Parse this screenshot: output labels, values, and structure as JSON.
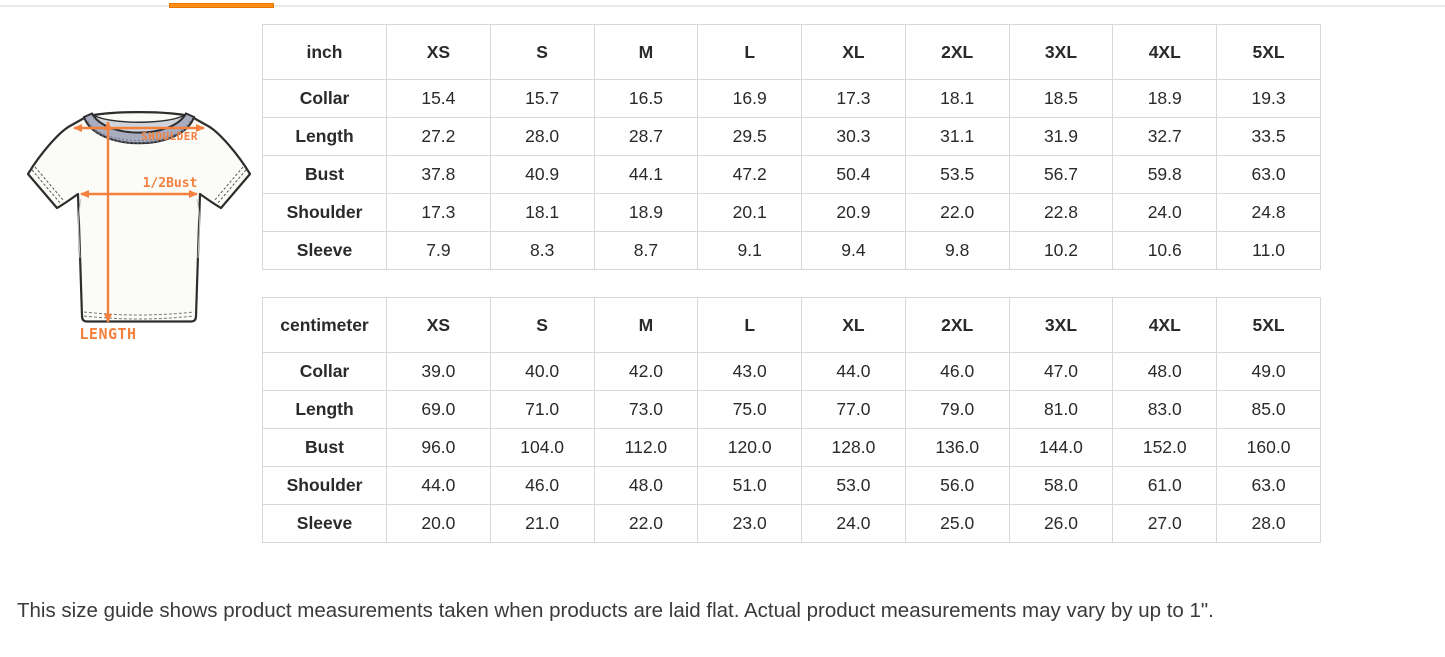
{
  "page": {
    "accent_color": "#ff8e14",
    "note": "This size guide shows product measurements taken when products are laid flat. Actual product measurements may vary by up to 1\"."
  },
  "diagram": {
    "arrow_color": "#F4803E",
    "collar_color": "#a8acbf",
    "labels": {
      "shoulder": "SHOULDER",
      "half_bust": "1/2Bust",
      "length": "LENGTH"
    }
  },
  "size_tables": [
    {
      "unit": "inch",
      "columns": [
        "inch",
        "XS",
        "S",
        "M",
        "L",
        "XL",
        "2XL",
        "3XL",
        "4XL",
        "5XL"
      ],
      "rows": [
        {
          "label": "Collar",
          "values": [
            "15.4",
            "15.7",
            "16.5",
            "16.9",
            "17.3",
            "18.1",
            "18.5",
            "18.9",
            "19.3"
          ]
        },
        {
          "label": "Length",
          "values": [
            "27.2",
            "28.0",
            "28.7",
            "29.5",
            "30.3",
            "31.1",
            "31.9",
            "32.7",
            "33.5"
          ]
        },
        {
          "label": "Bust",
          "values": [
            "37.8",
            "40.9",
            "44.1",
            "47.2",
            "50.4",
            "53.5",
            "56.7",
            "59.8",
            "63.0"
          ]
        },
        {
          "label": "Shoulder",
          "values": [
            "17.3",
            "18.1",
            "18.9",
            "20.1",
            "20.9",
            "22.0",
            "22.8",
            "24.0",
            "24.8"
          ]
        },
        {
          "label": "Sleeve",
          "values": [
            "7.9",
            "8.3",
            "8.7",
            "9.1",
            "9.4",
            "9.8",
            "10.2",
            "10.6",
            "11.0"
          ]
        }
      ]
    },
    {
      "unit": "centimeter",
      "columns": [
        "centimeter",
        "XS",
        "S",
        "M",
        "L",
        "XL",
        "2XL",
        "3XL",
        "4XL",
        "5XL"
      ],
      "rows": [
        {
          "label": "Collar",
          "values": [
            "39.0",
            "40.0",
            "42.0",
            "43.0",
            "44.0",
            "46.0",
            "47.0",
            "48.0",
            "49.0"
          ]
        },
        {
          "label": "Length",
          "values": [
            "69.0",
            "71.0",
            "73.0",
            "75.0",
            "77.0",
            "79.0",
            "81.0",
            "83.0",
            "85.0"
          ]
        },
        {
          "label": "Bust",
          "values": [
            "96.0",
            "104.0",
            "112.0",
            "120.0",
            "128.0",
            "136.0",
            "144.0",
            "152.0",
            "160.0"
          ]
        },
        {
          "label": "Shoulder",
          "values": [
            "44.0",
            "46.0",
            "48.0",
            "51.0",
            "53.0",
            "56.0",
            "58.0",
            "61.0",
            "63.0"
          ]
        },
        {
          "label": "Sleeve",
          "values": [
            "20.0",
            "21.0",
            "22.0",
            "23.0",
            "24.0",
            "25.0",
            "26.0",
            "27.0",
            "28.0"
          ]
        }
      ]
    }
  ]
}
